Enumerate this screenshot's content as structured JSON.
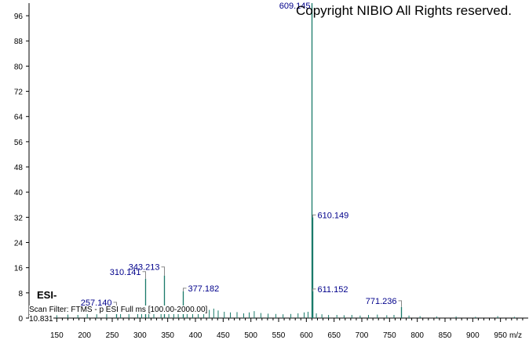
{
  "watermark": "Copyright NIBIO All Rights reserved.",
  "ionization_mode": "ESI-",
  "scan_filter": "Scan Filter: FTMS - p ESI Full ms [100.00-2000.00]",
  "retention_time": "10.831",
  "colors": {
    "peaks": "#1a7a6a",
    "labels": "#00008b",
    "axis": "#000000"
  },
  "chart_data": {
    "type": "bar",
    "xlabel": "m/z",
    "ylabel": "",
    "xlim": [
      100,
      1000
    ],
    "ylim": [
      0,
      100
    ],
    "xticks": [
      150,
      200,
      250,
      300,
      350,
      400,
      450,
      500,
      550,
      600,
      650,
      700,
      750,
      800,
      850,
      900,
      950
    ],
    "yticks": [
      0,
      8,
      16,
      24,
      32,
      40,
      48,
      56,
      64,
      72,
      80,
      88,
      96
    ],
    "labeled_peaks": [
      {
        "mz": 609.145,
        "intensity": 100,
        "label": "609.145"
      },
      {
        "mz": 610.149,
        "intensity": 32,
        "label": "610.149"
      },
      {
        "mz": 611.152,
        "intensity": 8.5,
        "label": "611.152"
      },
      {
        "mz": 343.213,
        "intensity": 13.5,
        "label": "343.213"
      },
      {
        "mz": 310.141,
        "intensity": 12.5,
        "label": "310.141"
      },
      {
        "mz": 377.182,
        "intensity": 8.5,
        "label": "377.182"
      },
      {
        "mz": 257.14,
        "intensity": 3.5,
        "label": "257.140"
      },
      {
        "mz": 771.236,
        "intensity": 3.5,
        "label": "771.236"
      }
    ],
    "minor_peaks": [
      {
        "mz": 120,
        "intensity": 0.8
      },
      {
        "mz": 135,
        "intensity": 1.0
      },
      {
        "mz": 150,
        "intensity": 0.9
      },
      {
        "mz": 170,
        "intensity": 1.1
      },
      {
        "mz": 188,
        "intensity": 1.0
      },
      {
        "mz": 205,
        "intensity": 1.4
      },
      {
        "mz": 222,
        "intensity": 1.2
      },
      {
        "mz": 240,
        "intensity": 1.6
      },
      {
        "mz": 265,
        "intensity": 1.5
      },
      {
        "mz": 280,
        "intensity": 1.8
      },
      {
        "mz": 296,
        "intensity": 2.0
      },
      {
        "mz": 303,
        "intensity": 2.8
      },
      {
        "mz": 316,
        "intensity": 2.2
      },
      {
        "mz": 325,
        "intensity": 2.5
      },
      {
        "mz": 338,
        "intensity": 2.0
      },
      {
        "mz": 352,
        "intensity": 2.6
      },
      {
        "mz": 361,
        "intensity": 2.3
      },
      {
        "mz": 369,
        "intensity": 2.0
      },
      {
        "mz": 385,
        "intensity": 2.4
      },
      {
        "mz": 395,
        "intensity": 2.0
      },
      {
        "mz": 405,
        "intensity": 1.8
      },
      {
        "mz": 415,
        "intensity": 2.2
      },
      {
        "mz": 425,
        "intensity": 2.6
      },
      {
        "mz": 433,
        "intensity": 3.0
      },
      {
        "mz": 441,
        "intensity": 2.4
      },
      {
        "mz": 452,
        "intensity": 2.0
      },
      {
        "mz": 463,
        "intensity": 1.8
      },
      {
        "mz": 475,
        "intensity": 1.9
      },
      {
        "mz": 487,
        "intensity": 1.5
      },
      {
        "mz": 497,
        "intensity": 1.8
      },
      {
        "mz": 506,
        "intensity": 2.2
      },
      {
        "mz": 518,
        "intensity": 1.6
      },
      {
        "mz": 531,
        "intensity": 1.4
      },
      {
        "mz": 545,
        "intensity": 1.3
      },
      {
        "mz": 558,
        "intensity": 1.2
      },
      {
        "mz": 572,
        "intensity": 1.3
      },
      {
        "mz": 585,
        "intensity": 1.5
      },
      {
        "mz": 596,
        "intensity": 1.8
      },
      {
        "mz": 603,
        "intensity": 2.0
      },
      {
        "mz": 618,
        "intensity": 1.5
      },
      {
        "mz": 628,
        "intensity": 1.2
      },
      {
        "mz": 640,
        "intensity": 1.0
      },
      {
        "mz": 655,
        "intensity": 1.0
      },
      {
        "mz": 668,
        "intensity": 0.9
      },
      {
        "mz": 682,
        "intensity": 1.0
      },
      {
        "mz": 697,
        "intensity": 0.8
      },
      {
        "mz": 712,
        "intensity": 1.0
      },
      {
        "mz": 728,
        "intensity": 1.1
      },
      {
        "mz": 745,
        "intensity": 0.9
      },
      {
        "mz": 758,
        "intensity": 1.0
      },
      {
        "mz": 785,
        "intensity": 0.8
      },
      {
        "mz": 805,
        "intensity": 0.6
      },
      {
        "mz": 835,
        "intensity": 0.5
      },
      {
        "mz": 870,
        "intensity": 0.5
      },
      {
        "mz": 905,
        "intensity": 0.4
      },
      {
        "mz": 945,
        "intensity": 0.6
      },
      {
        "mz": 975,
        "intensity": 0.4
      }
    ]
  }
}
